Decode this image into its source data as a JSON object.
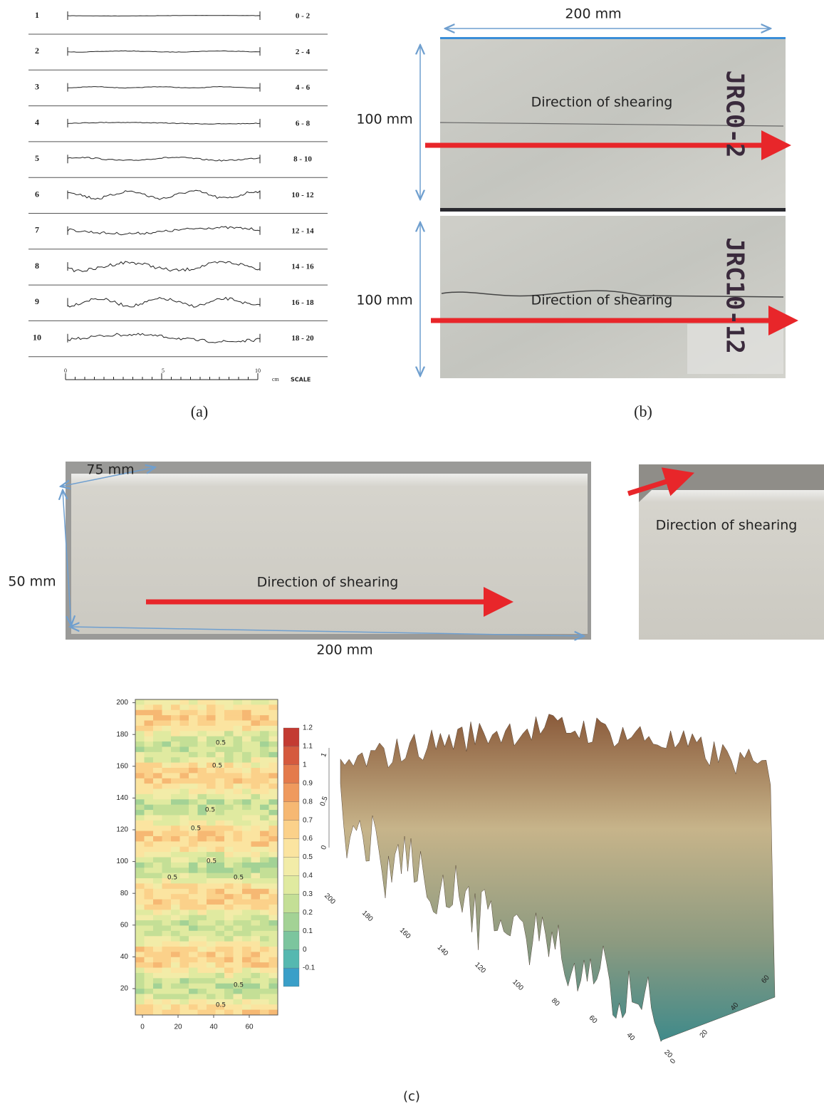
{
  "panel_a": {
    "rows": [
      {
        "number": "1",
        "range": "0 - 2"
      },
      {
        "number": "2",
        "range": "2 - 4"
      },
      {
        "number": "3",
        "range": "4 - 6"
      },
      {
        "number": "4",
        "range": "6 - 8"
      },
      {
        "number": "5",
        "range": "8 - 10"
      },
      {
        "number": "6",
        "range": "10 - 12"
      },
      {
        "number": "7",
        "range": "12 - 14"
      },
      {
        "number": "8",
        "range": "14 - 16"
      },
      {
        "number": "9",
        "range": "16 - 18"
      },
      {
        "number": "10",
        "range": "18 - 20"
      }
    ],
    "scale": {
      "ticks": [
        "0",
        "5",
        "10"
      ],
      "unit": "cm",
      "label": "SCALE"
    },
    "caption": "(a)"
  },
  "panel_b": {
    "width_label": "200 mm",
    "samples": [
      {
        "height_label": "100 mm",
        "direction": "Direction of shearing",
        "marking": "JRC0-2"
      },
      {
        "height_label": "100 mm",
        "direction": "Direction of shearing",
        "marking": "JRC10-12"
      }
    ],
    "caption": "(b)"
  },
  "panel_photo": {
    "depth_label": "75 mm",
    "height_label": "50 mm",
    "length_label": "200 mm",
    "direction": "Direction of shearing",
    "side_direction": "Direction of shearing"
  },
  "panel_c": {
    "contour": {
      "yticks": [
        "20",
        "40",
        "60",
        "80",
        "100",
        "120",
        "140",
        "160",
        "180",
        "200"
      ],
      "xticks": [
        "0",
        "20",
        "40",
        "60"
      ],
      "contour_labels": [
        "0.5",
        "0.5",
        "0.5",
        "0.5",
        "0.5",
        "0.5",
        "0.5",
        "0.5",
        "0.5"
      ],
      "colorbar_ticks": [
        "-0.1",
        "0",
        "0.1",
        "0.2",
        "0.3",
        "0.4",
        "0.5",
        "0.6",
        "0.7",
        "0.8",
        "0.9",
        "1",
        "1.1",
        "1.2"
      ]
    },
    "surface": {
      "zticks": [
        "1",
        "0.5",
        "0"
      ],
      "yticks": [
        "200",
        "180",
        "160",
        "140",
        "120",
        "100",
        "80",
        "60",
        "40",
        "20"
      ],
      "xticks": [
        "0",
        "20",
        "40",
        "60"
      ]
    },
    "caption": "(c)"
  }
}
